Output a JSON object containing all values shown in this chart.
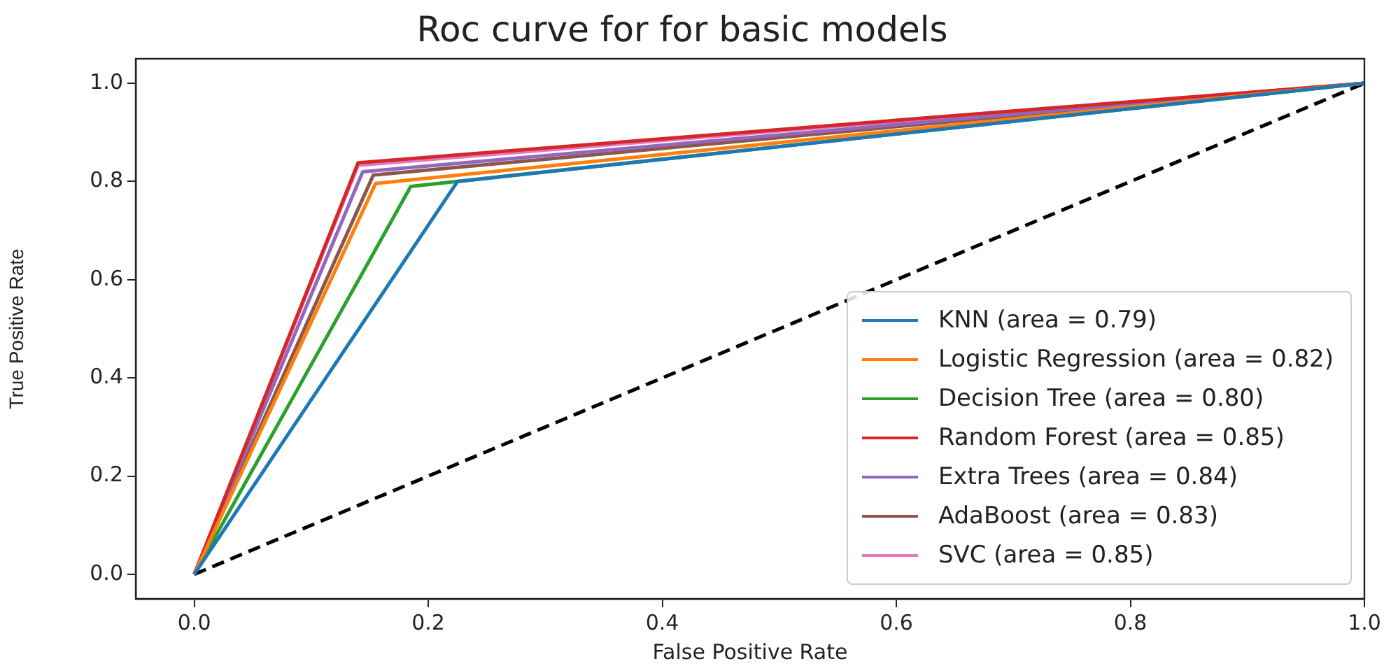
{
  "chart_data": {
    "type": "line",
    "title": "Roc curve for for basic models",
    "xlabel": "False Positive Rate",
    "ylabel": "True Positive Rate",
    "xlim": [
      -0.05,
      1.0
    ],
    "ylim": [
      -0.05,
      1.05
    ],
    "xticks": [
      {
        "value": 0,
        "label": "0.0"
      },
      {
        "value": 0.2,
        "label": "0.2"
      },
      {
        "value": 0.4,
        "label": "0.4"
      },
      {
        "value": 0.6,
        "label": "0.6"
      },
      {
        "value": 0.8,
        "label": "0.8"
      },
      {
        "value": 1,
        "label": "1.0"
      }
    ],
    "yticks": [
      {
        "value": 0,
        "label": "0.0"
      },
      {
        "value": 0.2,
        "label": "0.2"
      },
      {
        "value": 0.4,
        "label": "0.4"
      },
      {
        "value": 0.6,
        "label": "0.6"
      },
      {
        "value": 0.8,
        "label": "0.8"
      },
      {
        "value": 1,
        "label": "1.0"
      }
    ],
    "grid": false,
    "legend": "bottom right",
    "marker": "none",
    "line_style": "solid",
    "series": [
      {
        "name": "KNN (area = 0.79)",
        "color": "#1f77b4",
        "x": [
          0,
          0.225,
          1
        ],
        "values": [
          0,
          0.8,
          1
        ]
      },
      {
        "name": "Logistic Regression (area = 0.82)",
        "color": "#ff7f0e",
        "x": [
          0,
          0.155,
          1
        ],
        "values": [
          0,
          0.796,
          1
        ]
      },
      {
        "name": "Decision Tree (area = 0.80)",
        "color": "#2ca02c",
        "x": [
          0,
          0.185,
          1
        ],
        "values": [
          0,
          0.79,
          1
        ]
      },
      {
        "name": "Random Forest (area = 0.85)",
        "color": "#d62728",
        "x": [
          0,
          0.14,
          1
        ],
        "values": [
          0,
          0.838,
          1
        ]
      },
      {
        "name": "Extra Trees (area = 0.84)",
        "color": "#9467bd",
        "x": [
          0,
          0.144,
          1
        ],
        "values": [
          0,
          0.82,
          1
        ]
      },
      {
        "name": "AdaBoost (area = 0.83)",
        "color": "#8c564b",
        "x": [
          0,
          0.153,
          1
        ],
        "values": [
          0,
          0.813,
          1
        ]
      },
      {
        "name": "SVC (area = 0.85)",
        "color": "#e377c2",
        "x": [
          0,
          0.14,
          1
        ],
        "values": [
          0,
          0.833,
          1
        ]
      },
      {
        "color": "#000000",
        "x": [
          0,
          1
        ],
        "values": [
          0,
          1
        ],
        "line_style": "dashed"
      }
    ]
  }
}
